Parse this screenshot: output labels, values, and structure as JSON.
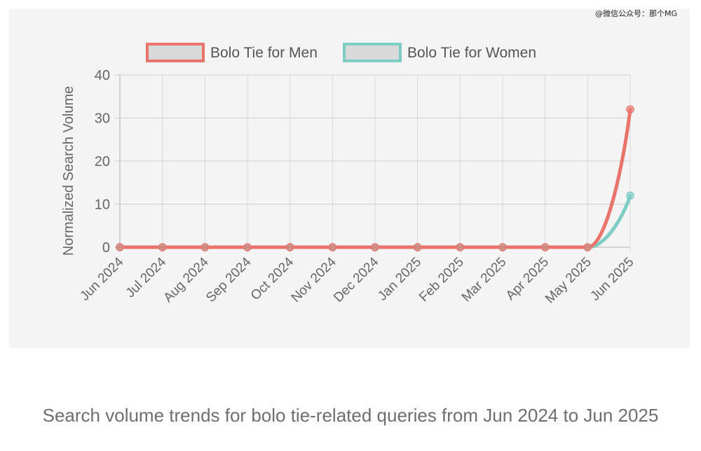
{
  "watermark": "@微信公众号：那个MG",
  "caption": "Search volume trends for bolo tie-related queries from Jun 2024 to Jun 2025",
  "chart_data": {
    "type": "line",
    "ylabel": "Normalized Search Volume",
    "ylim": [
      0,
      40
    ],
    "yticks": [
      0,
      10,
      20,
      30,
      40
    ],
    "grid": true,
    "legend_position": "top-center",
    "categories": [
      "Jun 2024",
      "Jul 2024",
      "Aug 2024",
      "Sep 2024",
      "Oct 2024",
      "Nov 2024",
      "Dec 2024",
      "Jan 2025",
      "Feb 2025",
      "Mar 2025",
      "Apr 2025",
      "May 2025",
      "Jun 2025"
    ],
    "series": [
      {
        "name": "Bolo Tie for Women",
        "color": "#7ecdc4",
        "values": [
          0,
          0,
          0,
          0,
          0,
          0,
          0,
          0,
          0,
          0,
          0,
          0,
          12
        ]
      },
      {
        "name": "Bolo Tie for Men",
        "color": "#e8746c",
        "values": [
          0,
          0,
          0,
          0,
          0,
          0,
          0,
          0,
          0,
          0,
          0,
          0,
          32
        ]
      }
    ],
    "legend_order": [
      1,
      0
    ]
  }
}
